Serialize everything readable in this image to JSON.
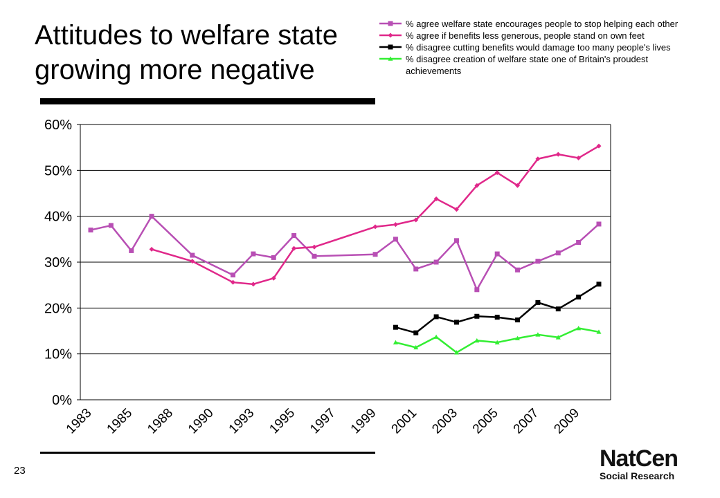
{
  "chart_data": {
    "type": "line",
    "title": "Attitudes to welfare state growing more negative",
    "categories": [
      "1983",
      null,
      "1985",
      null,
      "1988",
      null,
      "1990",
      null,
      "1993",
      null,
      "1995",
      null,
      "1997",
      null,
      "1999",
      null,
      "2001",
      null,
      "2003",
      null,
      "2005",
      null,
      "2007",
      null,
      "2009",
      null
    ],
    "series": [
      {
        "name": "% agree welfare state encourages people to stop helping each other",
        "color": "#b84fb4",
        "marker": "square",
        "values": [
          37,
          38,
          32.5,
          40,
          null,
          31.5,
          null,
          27.2,
          31.8,
          31,
          35.8,
          31.3,
          null,
          null,
          31.7,
          35,
          28.5,
          30,
          34.7,
          24,
          31.8,
          28.3,
          30.2,
          32,
          34.3,
          38.3
        ]
      },
      {
        "name": "% agree if benefits less generous, people stand on own feet",
        "color": "#e0288a",
        "marker": "diamond",
        "values": [
          null,
          null,
          null,
          32.8,
          null,
          30.2,
          null,
          25.6,
          25.2,
          26.5,
          33,
          33.3,
          null,
          null,
          37.7,
          38.2,
          39.2,
          43.8,
          41.5,
          46.7,
          49.5,
          46.7,
          52.5,
          53.5,
          52.7,
          55.3
        ]
      },
      {
        "name": "% disagree cutting benefits would damage too many people's lives",
        "color": "#000000",
        "marker": "square",
        "values": [
          null,
          null,
          null,
          null,
          null,
          null,
          null,
          null,
          null,
          null,
          null,
          null,
          null,
          null,
          null,
          15.8,
          14.6,
          18.1,
          16.9,
          18.2,
          18,
          17.4,
          21.2,
          19.8,
          22.4,
          25.2
        ]
      },
      {
        "name": "% disagree creation of welfare state one of Britain's proudest achievements",
        "color": "#33ee33",
        "marker": "triangle",
        "values": [
          null,
          null,
          null,
          null,
          null,
          null,
          null,
          null,
          null,
          null,
          null,
          null,
          null,
          null,
          null,
          12.5,
          11.4,
          13.7,
          10.3,
          12.9,
          12.5,
          13.4,
          14.2,
          13.6,
          15.6,
          14.8
        ]
      }
    ],
    "ylim": [
      0,
      60
    ],
    "yticks": [
      {
        "value": 0,
        "label": "0%"
      },
      {
        "value": 10,
        "label": "10%"
      },
      {
        "value": 20,
        "label": "20%"
      },
      {
        "value": 30,
        "label": "30%"
      },
      {
        "value": 40,
        "label": "40%"
      },
      {
        "value": 50,
        "label": "50%"
      },
      {
        "value": 60,
        "label": "60%"
      }
    ],
    "grid": true,
    "legend": "top-right"
  },
  "page_number": "23",
  "logo": {
    "name": "NatCen",
    "tagline": "Social Research"
  }
}
